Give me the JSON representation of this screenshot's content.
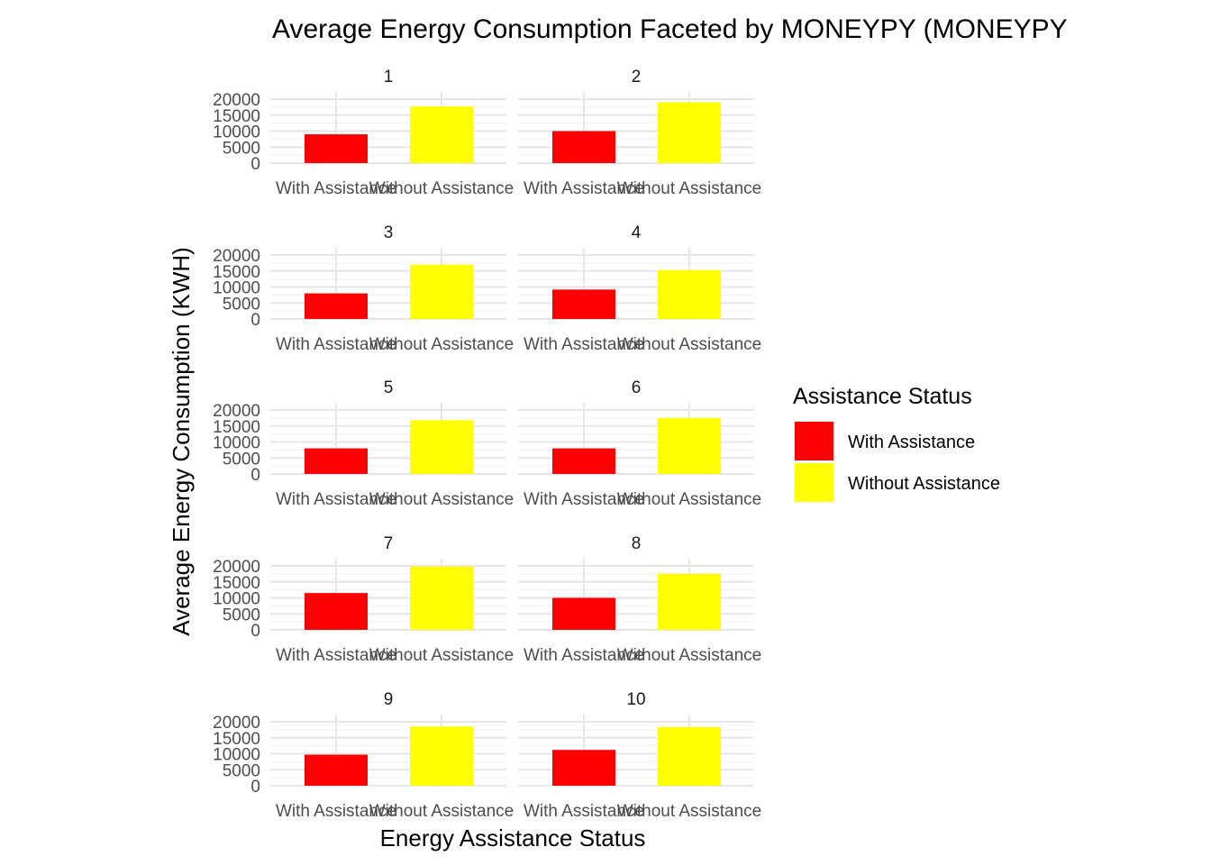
{
  "chart_data": {
    "type": "bar",
    "title": "Average Energy Consumption Faceted by MONEYPY (MONEYPY",
    "xlabel": "Energy Assistance Status",
    "ylabel": "Average Energy Consumption (KWH)",
    "categories": [
      "With Assistance",
      "Without Assistance"
    ],
    "ylim": [
      0,
      20000
    ],
    "yticks": [
      0,
      5000,
      10000,
      15000,
      20000
    ],
    "grid": true,
    "facets": [
      {
        "label": "1",
        "values": [
          9000,
          17700
        ]
      },
      {
        "label": "2",
        "values": [
          10000,
          19000
        ]
      },
      {
        "label": "3",
        "values": [
          8000,
          17000
        ]
      },
      {
        "label": "4",
        "values": [
          9200,
          15300
        ]
      },
      {
        "label": "5",
        "values": [
          8000,
          16800
        ]
      },
      {
        "label": "6",
        "values": [
          8000,
          17500
        ]
      },
      {
        "label": "7",
        "values": [
          11500,
          19800
        ]
      },
      {
        "label": "8",
        "values": [
          10000,
          17500
        ]
      },
      {
        "label": "9",
        "values": [
          9700,
          18500
        ]
      },
      {
        "label": "10",
        "values": [
          11200,
          18300
        ]
      }
    ],
    "legend": {
      "title": "Assistance Status",
      "position": "right",
      "items": [
        {
          "label": "With Assistance",
          "color": "#ff0000"
        },
        {
          "label": "Without Assistance",
          "color": "#ffff00"
        }
      ]
    }
  }
}
